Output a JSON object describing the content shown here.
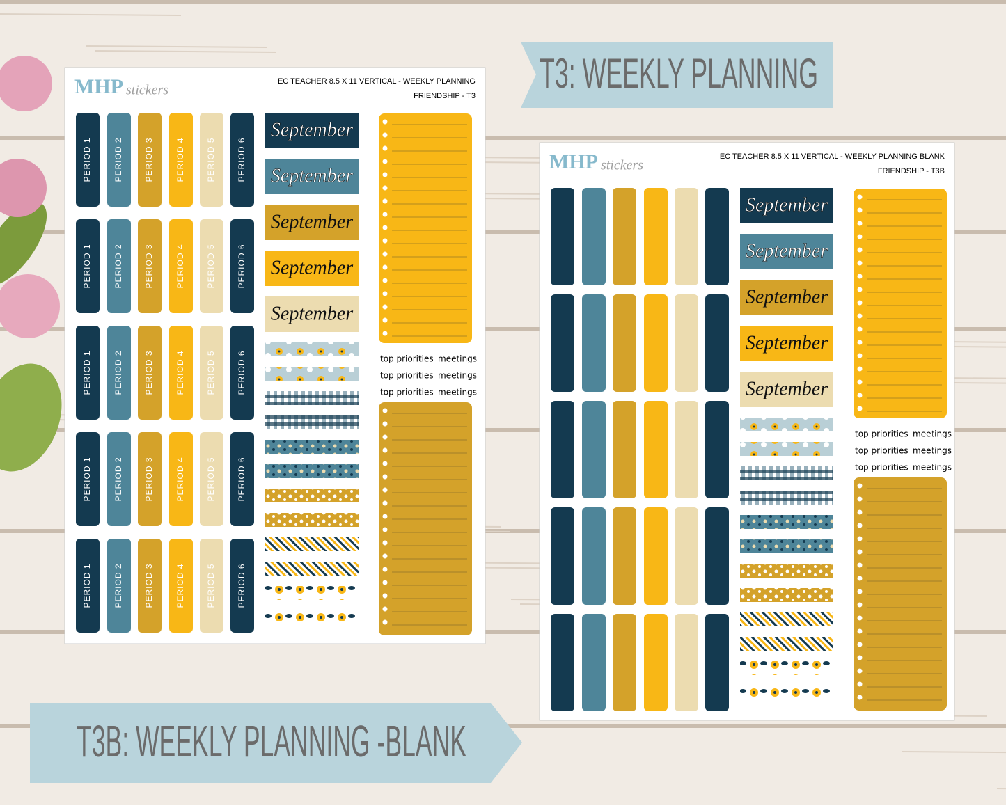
{
  "banners": {
    "top": "T3: WEEKLY PLANNING",
    "bottom": "T3B: WEEKLY PLANNING -BLANK"
  },
  "sheets": [
    {
      "logo": {
        "brand": "MHP",
        "script": "stickers"
      },
      "title": "EC TEACHER 8.5 X 11 VERTICAL - WEEKLY PLANNING",
      "subtitle": "FRIENDSHIP - T3",
      "period_rows": [
        [
          "PERIOD 1",
          "PERIOD 2",
          "PERIOD 3",
          "PERIOD 4",
          "PERIOD 5",
          "PERIOD 6"
        ],
        [
          "PERIOD 1",
          "PERIOD 2",
          "PERIOD 3",
          "PERIOD 4",
          "PERIOD 5",
          "PERIOD 6"
        ],
        [
          "PERIOD 1",
          "PERIOD 2",
          "PERIOD 3",
          "PERIOD 4",
          "PERIOD 5",
          "PERIOD 6"
        ],
        [
          "PERIOD 1",
          "PERIOD 2",
          "PERIOD 3",
          "PERIOD 4",
          "PERIOD 5",
          "PERIOD 6"
        ],
        [
          "PERIOD 1",
          "PERIOD 2",
          "PERIOD 3",
          "PERIOD 4",
          "PERIOD 5",
          "PERIOD 6"
        ]
      ],
      "month_labels": [
        "September",
        "September",
        "September",
        "September",
        "September"
      ],
      "priority_rows": [
        [
          "top priorities",
          "meetings"
        ],
        [
          "top priorities",
          "meetings"
        ],
        [
          "top priorities",
          "meetings"
        ]
      ]
    },
    {
      "logo": {
        "brand": "MHP",
        "script": "stickers"
      },
      "title": "EC TEACHER 8.5 X 11 VERTICAL - WEEKLY PLANNING BLANK",
      "subtitle": "FRIENDSHIP - T3B",
      "month_labels": [
        "September",
        "September",
        "September",
        "September",
        "September"
      ],
      "priority_rows": [
        [
          "top priorities",
          "meetings"
        ],
        [
          "top priorities",
          "meetings"
        ],
        [
          "top priorities",
          "meetings"
        ]
      ]
    }
  ]
}
